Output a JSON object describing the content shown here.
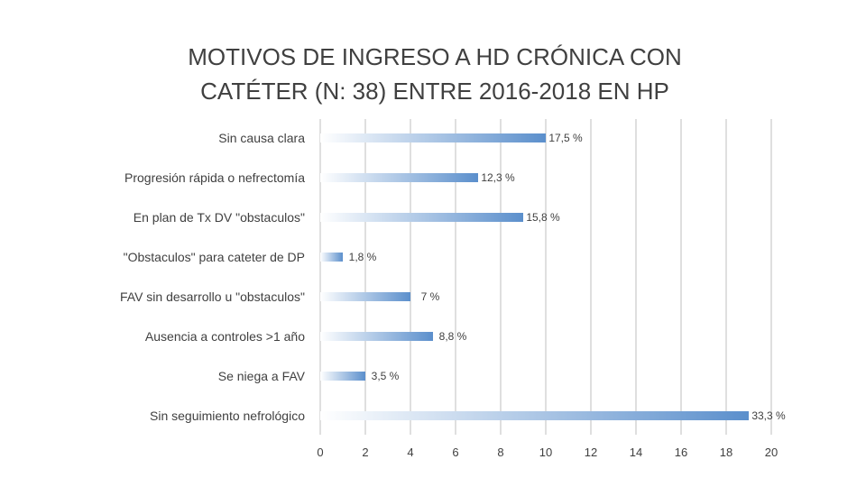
{
  "chart_data": {
    "type": "bar",
    "orientation": "horizontal",
    "title": "MOTIVOS DE INGRESO A HD CRÓNICA CON CATÉTER (N: 38) ENTRE 2016-2018 EN HP",
    "title_lines": [
      "MOTIVOS DE INGRESO A HD CRÓNICA CON",
      "CATÉTER (N: 38) ENTRE 2016-2018 EN HP"
    ],
    "categories": [
      "Sin causa clara",
      "Progresión rápida o nefrectomía",
      "En plan de Tx DV \"obstaculos\"",
      "\"Obstaculos\" para cateter de DP",
      "FAV sin desarrollo u \"obstaculos\"",
      "Ausencia a controles >1 año",
      "Se niega a FAV",
      "Sin seguimiento nefrológico"
    ],
    "values": [
      10,
      7,
      9,
      1,
      4,
      5,
      2,
      19
    ],
    "data_labels": [
      "17,5 %",
      "12,3 %",
      "15,8 %",
      "1,8 %",
      "7 %",
      "8,8 %",
      "3,5 %",
      "33,3 %"
    ],
    "xlim": [
      0,
      20
    ],
    "xticks": [
      0,
      2,
      4,
      6,
      8,
      10,
      12,
      14,
      16,
      18,
      20
    ],
    "xlabel": "",
    "ylabel": "",
    "grid": true,
    "legend": "none",
    "colors": {
      "bar_start": "#ffffff",
      "bar_end": "#5b8fcc",
      "grid": "#bfbfbf",
      "text": "#404040"
    }
  }
}
